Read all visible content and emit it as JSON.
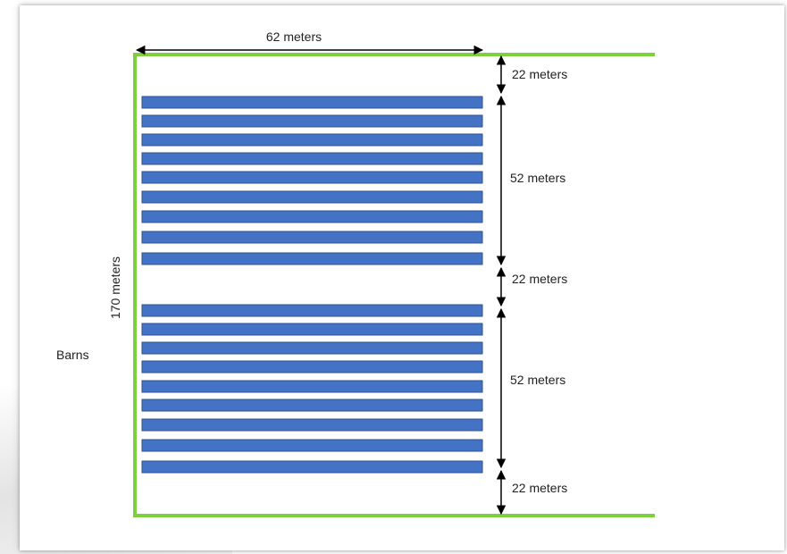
{
  "labels": {
    "top_width": "62 meters",
    "left_height": "170 meters",
    "side_label": "Barns",
    "right_segments": [
      "22 meters",
      "52 meters",
      "22 meters",
      "52 meters",
      "22 meters"
    ]
  },
  "colors": {
    "boundary": "#7dd13f",
    "barn_fill": "#4472c4",
    "barn_stroke": "#2f528f",
    "dimension_line": "#000000"
  },
  "barn_groups": [
    {
      "count": 9
    },
    {
      "count": 9
    }
  ]
}
